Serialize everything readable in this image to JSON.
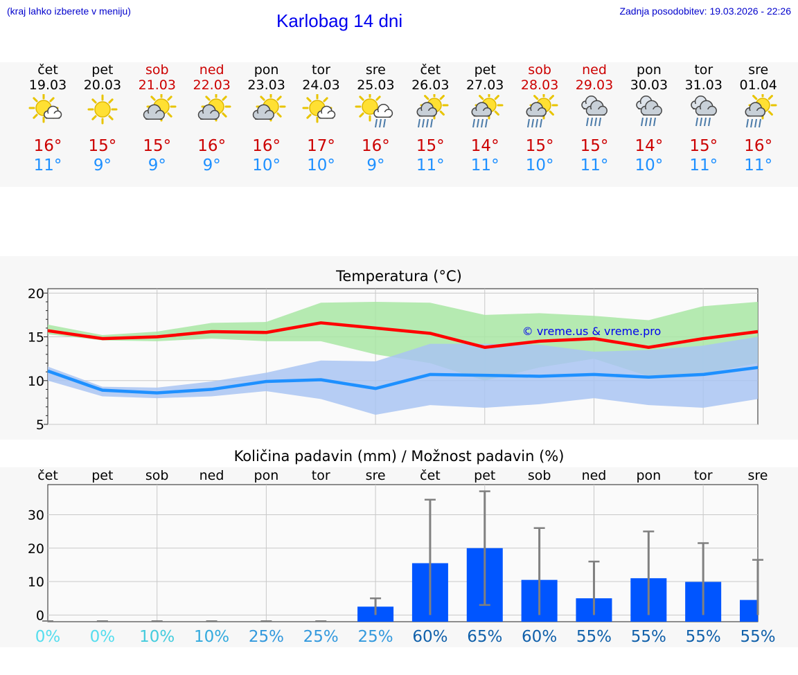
{
  "header": {
    "hint": "(kraj lahko izberete v meniju)",
    "title": "Karlobag 14 dni",
    "updated": "Zadnja posodobitev: 19.03.2026 - 22:26"
  },
  "days": [
    {
      "name": "čet",
      "date": "19.03",
      "weekend": false,
      "icon": "sun-cloud-icon",
      "tmax": "16°",
      "tmin": "11°"
    },
    {
      "name": "pet",
      "date": "20.03",
      "weekend": false,
      "icon": "sun-icon",
      "tmax": "15°",
      "tmin": "9°"
    },
    {
      "name": "sob",
      "date": "21.03",
      "weekend": true,
      "icon": "cloud-sun-icon",
      "tmax": "15°",
      "tmin": "9°"
    },
    {
      "name": "ned",
      "date": "22.03",
      "weekend": true,
      "icon": "cloud-sun-icon",
      "tmax": "16°",
      "tmin": "9°"
    },
    {
      "name": "pon",
      "date": "23.03",
      "weekend": false,
      "icon": "cloud-sun-icon",
      "tmax": "16°",
      "tmin": "10°"
    },
    {
      "name": "tor",
      "date": "24.03",
      "weekend": false,
      "icon": "sun-cloud-icon",
      "tmax": "17°",
      "tmin": "10°"
    },
    {
      "name": "sre",
      "date": "25.03",
      "weekend": false,
      "icon": "sun-rain-icon",
      "tmax": "16°",
      "tmin": "9°"
    },
    {
      "name": "čet",
      "date": "26.03",
      "weekend": false,
      "icon": "sun-cloud-rain-icon",
      "tmax": "15°",
      "tmin": "11°"
    },
    {
      "name": "pet",
      "date": "27.03",
      "weekend": false,
      "icon": "sun-cloud-rain-icon",
      "tmax": "14°",
      "tmin": "11°"
    },
    {
      "name": "sob",
      "date": "28.03",
      "weekend": true,
      "icon": "sun-cloud-rain-icon",
      "tmax": "15°",
      "tmin": "10°"
    },
    {
      "name": "ned",
      "date": "29.03",
      "weekend": true,
      "icon": "cloud-rain-icon",
      "tmax": "15°",
      "tmin": "11°"
    },
    {
      "name": "pon",
      "date": "30.03",
      "weekend": false,
      "icon": "cloud-rain-icon",
      "tmax": "14°",
      "tmin": "10°"
    },
    {
      "name": "tor",
      "date": "31.03",
      "weekend": false,
      "icon": "cloud-rain-icon",
      "tmax": "15°",
      "tmin": "11°"
    },
    {
      "name": "sre",
      "date": "01.04",
      "weekend": false,
      "icon": "sun-cloud-rain-icon",
      "tmax": "16°",
      "tmin": "11°"
    }
  ],
  "colors": {
    "weekend": "#cc0000",
    "tmax": "#cc0000",
    "tmin": "#1e90ff",
    "max_line": "#ff0000",
    "min_line": "#1e90ff",
    "max_band": "#a8e6a3",
    "min_band": "#a9c4f2",
    "bar": "#0055ff",
    "errbar": "#808080"
  },
  "chart_data": [
    {
      "type": "line",
      "title": "Temperatura (°C)",
      "watermark": "© vreme.us & vreme.pro",
      "x": [
        0,
        1,
        2,
        3,
        4,
        5,
        6,
        7,
        8,
        9,
        10,
        11,
        12,
        13
      ],
      "ylim": [
        5,
        20.5
      ],
      "yticks": [
        5,
        10,
        15,
        20
      ],
      "series": [
        {
          "name": "max",
          "values": [
            15.7,
            14.8,
            15.0,
            15.6,
            15.5,
            16.6,
            16.0,
            15.4,
            13.8,
            14.5,
            14.8,
            13.8,
            14.8,
            15.6
          ],
          "band_low": [
            15.3,
            14.6,
            14.5,
            14.8,
            14.5,
            14.5,
            13.0,
            12.0,
            10.0,
            11.5,
            12.5,
            10.5,
            10.8,
            12.0
          ],
          "band_high": [
            16.4,
            15.2,
            15.6,
            16.6,
            16.7,
            18.9,
            19.0,
            18.9,
            17.5,
            17.7,
            17.4,
            16.9,
            18.5,
            19.0
          ]
        },
        {
          "name": "min",
          "values": [
            11.1,
            8.9,
            8.6,
            9.0,
            9.9,
            10.1,
            9.1,
            10.7,
            10.6,
            10.5,
            10.7,
            10.4,
            10.7,
            11.5
          ],
          "band_low": [
            10.0,
            8.2,
            8.0,
            8.2,
            8.8,
            7.9,
            6.1,
            7.2,
            6.9,
            7.3,
            8.0,
            7.2,
            6.9,
            7.9
          ],
          "band_high": [
            11.6,
            9.3,
            9.2,
            9.9,
            10.9,
            12.3,
            12.2,
            14.2,
            14.2,
            14.1,
            13.3,
            13.5,
            14.0,
            15.0
          ]
        }
      ]
    },
    {
      "type": "bar",
      "title": "Količina padavin (mm) / Možnost padavin (%)",
      "categories": [
        "čet",
        "pet",
        "sob",
        "ned",
        "pon",
        "tor",
        "sre",
        "čet",
        "pet",
        "sob",
        "ned",
        "pon",
        "tor",
        "sre"
      ],
      "values": [
        0,
        0,
        0,
        0,
        0,
        0,
        2.5,
        15.5,
        20,
        10.5,
        5,
        11,
        9.9,
        4.5
      ],
      "error_high": [
        0,
        0,
        0,
        0,
        0,
        0,
        5,
        34.5,
        37,
        26,
        16,
        25,
        21.5,
        16.5
      ],
      "error_low": [
        0,
        0,
        0,
        0,
        0,
        0,
        0,
        0,
        3,
        0,
        0,
        0,
        0,
        0
      ],
      "ylim": [
        -2,
        39
      ],
      "yticks": [
        0,
        10,
        20,
        30
      ],
      "probability": [
        "0%",
        "0%",
        "10%",
        "10%",
        "25%",
        "25%",
        "25%",
        "60%",
        "65%",
        "60%",
        "55%",
        "55%",
        "55%",
        "55%"
      ],
      "probability_colors": [
        "#55ddee",
        "#55ddee",
        "#44ccdd",
        "#33aadd",
        "#3399dd",
        "#3399dd",
        "#3399dd",
        "#1060aa",
        "#1060aa",
        "#1060aa",
        "#1060aa",
        "#1060aa",
        "#1060aa",
        "#1060aa"
      ]
    }
  ]
}
